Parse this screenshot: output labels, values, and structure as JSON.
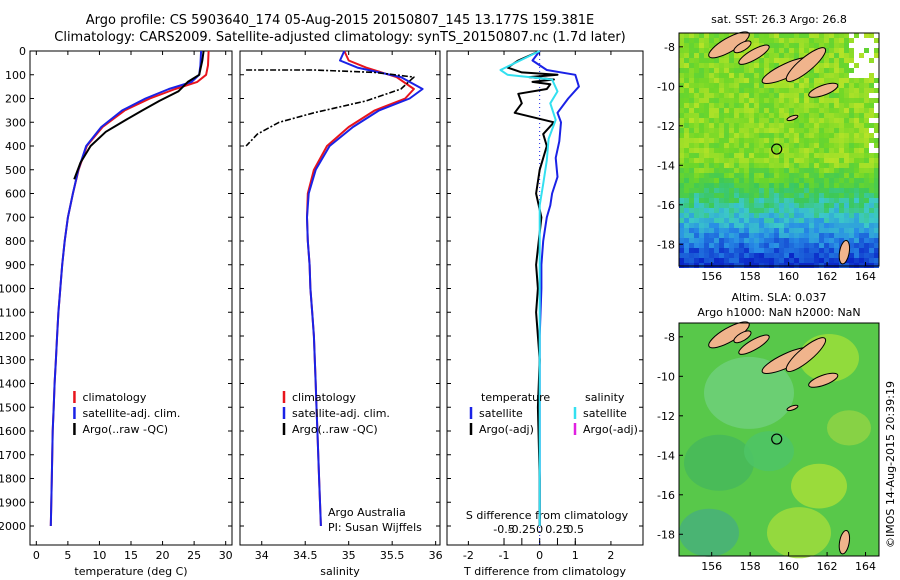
{
  "titles": {
    "line1": "Argo profile: CS 5903640_174 05-Aug-2015 20150807_145 13.177S 159.381E",
    "line2": "Climatology: CARS2009. Satellite-adjusted climatology: synTS_20150807.nc (1.7d later)"
  },
  "colors": {
    "climatology": "#e8141c",
    "satellite": "#1a22e6",
    "argo": "#000000",
    "sat_salinity": "#33e0f0",
    "argo_adj_salinity": "#e020e0"
  },
  "depth_axis": {
    "ylim": [
      0,
      2080
    ],
    "ticks": [
      0,
      100,
      200,
      300,
      400,
      500,
      600,
      700,
      800,
      900,
      1000,
      1100,
      1200,
      1300,
      1400,
      1500,
      1600,
      1700,
      1800,
      1900,
      2000
    ]
  },
  "chart_data": [
    {
      "type": "line",
      "id": "temperature",
      "xlabel": "temperature (deg C)",
      "xlim": [
        -1,
        31
      ],
      "xticks": [
        0,
        5,
        10,
        15,
        20,
        25,
        30
      ],
      "ylim": [
        0,
        2080
      ],
      "legend": {
        "position": "bottom-center",
        "entries": [
          "climatology",
          "satellite-adj. clim.",
          "Argo(..raw -QC)"
        ]
      },
      "series": [
        {
          "name": "climatology",
          "color": "#e8141c",
          "x": [
            27.3,
            27.2,
            26.9,
            25.5,
            22.0,
            18.0,
            14.0,
            10.5,
            8.0,
            6.7,
            5.8,
            5.0,
            4.5,
            4.1,
            3.8,
            3.5,
            3.3,
            3.1,
            2.9,
            2.75,
            2.6,
            2.45,
            2.3
          ],
          "y": [
            0,
            60,
            100,
            130,
            160,
            200,
            250,
            320,
            400,
            500,
            600,
            700,
            800,
            900,
            1000,
            1100,
            1200,
            1300,
            1400,
            1500,
            1600,
            1800,
            2000
          ]
        },
        {
          "name": "satellite-adj. clim.",
          "color": "#1a22e6",
          "x": [
            26.1,
            26.0,
            25.8,
            24.6,
            21.0,
            17.3,
            13.6,
            10.3,
            7.9,
            6.65,
            5.8,
            5.0,
            4.5,
            4.1,
            3.8,
            3.5,
            3.3,
            3.1,
            2.9,
            2.75,
            2.6,
            2.45,
            2.3
          ],
          "y": [
            0,
            60,
            100,
            130,
            160,
            200,
            250,
            320,
            400,
            500,
            600,
            700,
            800,
            900,
            1000,
            1100,
            1200,
            1300,
            1400,
            1500,
            1600,
            1800,
            2000
          ]
        },
        {
          "name": "Argo(..raw -QC)",
          "color": "#000000",
          "x": [
            26.5,
            26.3,
            25.8,
            24.0,
            22.5,
            19.5,
            16.8,
            14.2,
            11.0,
            8.6,
            7.0,
            6.0
          ],
          "y": [
            0,
            40,
            100,
            130,
            170,
            210,
            250,
            290,
            340,
            400,
            470,
            540
          ]
        }
      ]
    },
    {
      "type": "line",
      "id": "salinity",
      "xlabel": "salinity",
      "xlim": [
        33.75,
        36.05
      ],
      "xticks": [
        34,
        34.5,
        35,
        35.5,
        36
      ],
      "xtick_labels": [
        "34",
        "34.5",
        "35",
        "35.5",
        "36"
      ],
      "ylim": [
        0,
        2080
      ],
      "legend": {
        "position": "bottom-center",
        "entries": [
          "climatology",
          "satellite-adj. clim.",
          "Argo(..raw -QC)"
        ]
      },
      "annotation": [
        "Argo Australia",
        "PI: Susan Wijffels"
      ],
      "series": [
        {
          "name": "climatology",
          "color": "#e8141c",
          "x": [
            34.95,
            35.0,
            35.2,
            35.55,
            35.75,
            35.65,
            35.3,
            35.0,
            34.75,
            34.6,
            34.53,
            34.52,
            34.53,
            34.55,
            34.56,
            34.58,
            34.6,
            34.61,
            34.62,
            34.63,
            34.64,
            34.66,
            34.68
          ],
          "y": [
            0,
            40,
            70,
            110,
            160,
            200,
            250,
            320,
            400,
            500,
            600,
            700,
            800,
            900,
            1000,
            1100,
            1200,
            1300,
            1400,
            1500,
            1600,
            1800,
            2000
          ]
        },
        {
          "name": "satellite-adj. clim.",
          "color": "#1a22e6",
          "x": [
            34.95,
            34.9,
            35.1,
            35.6,
            35.85,
            35.7,
            35.35,
            35.05,
            34.78,
            34.62,
            34.54,
            34.52,
            34.53,
            34.55,
            34.56,
            34.58,
            34.6,
            34.61,
            34.62,
            34.63,
            34.64,
            34.66,
            34.68
          ],
          "y": [
            0,
            40,
            70,
            110,
            160,
            200,
            250,
            320,
            400,
            500,
            600,
            700,
            800,
            900,
            1000,
            1100,
            1200,
            1300,
            1400,
            1500,
            1600,
            1800,
            2000
          ]
        },
        {
          "name": "Argo(..raw -QC)",
          "color": "#000000",
          "dash": true,
          "x": [
            33.82,
            34.6,
            35.3,
            35.75,
            35.6,
            35.2,
            34.6,
            34.2,
            33.95,
            33.82
          ],
          "y": [
            80,
            80,
            90,
            110,
            160,
            210,
            260,
            300,
            350,
            400
          ]
        }
      ]
    },
    {
      "type": "line",
      "id": "difference",
      "xlabel": "T difference from climatology",
      "xlabel_top": "S difference from climatology",
      "xlim": [
        -2.6,
        2.9
      ],
      "xticks": [
        -2,
        -1,
        0,
        1,
        2
      ],
      "xtick_labels": [
        "-2",
        "-1",
        "0",
        "1",
        "2"
      ],
      "xticks_top_values": [
        -0.5,
        -0.25,
        0,
        0.25,
        0.5
      ],
      "xticks_top_labels": [
        "-0.5",
        "-0.25",
        "0",
        "0.25",
        "0.5"
      ],
      "ylim": [
        0,
        2080
      ],
      "legend": {
        "position": "bottom-center",
        "groups": [
          "temperature",
          "salinity"
        ],
        "entries": [
          "satellite",
          "Argo(-adj)",
          "satellite",
          "Argo(-adj)"
        ]
      },
      "series": [
        {
          "name": "satellite",
          "color": "#1a22e6",
          "x": [
            0,
            -0.2,
            0.2,
            1.0,
            1.1,
            0.8,
            0.5,
            0.6,
            0.55,
            0.45,
            0.5,
            0.35,
            0.3,
            0.2,
            0.1,
            0.05,
            0.05,
            0.0,
            0.0,
            0.0,
            0.0
          ],
          "y": [
            0,
            40,
            80,
            100,
            150,
            200,
            260,
            300,
            380,
            450,
            530,
            600,
            650,
            700,
            800,
            900,
            1000,
            1200,
            1500,
            1800,
            2000
          ]
        },
        {
          "name": "Argo(-adj)",
          "color": "#000000",
          "x": [
            0,
            -0.6,
            -0.9,
            -0.5,
            0.5,
            -0.3,
            0.4,
            -0.2,
            0.3,
            0.2,
            -0.6,
            -0.5,
            -0.7,
            0.4,
            0.1,
            0.2,
            0.0,
            -0.1,
            0.05,
            -0.1,
            -0.05,
            -0.1,
            0.0,
            -0.05,
            0.0,
            0.0
          ],
          "y": [
            0,
            40,
            70,
            90,
            100,
            110,
            120,
            130,
            140,
            160,
            180,
            220,
            260,
            300,
            350,
            400,
            500,
            600,
            700,
            900,
            1000,
            1100,
            1300,
            1500,
            1800,
            2000
          ]
        },
        {
          "name": "satellite",
          "color": "#33e0f0",
          "x": [
            0,
            -1.1,
            -0.9,
            0.35,
            0.5,
            0.3,
            0.45,
            0.25,
            0.2,
            0.1,
            0.0,
            0.0,
            0.0
          ],
          "y": [
            0,
            80,
            100,
            120,
            170,
            220,
            290,
            370,
            460,
            560,
            650,
            750,
            2000
          ]
        },
        {
          "name": "Argo(-adj)",
          "color": "#e020e0",
          "x": [],
          "y": []
        }
      ]
    }
  ],
  "maps": [
    {
      "id": "sst",
      "title": "sat. SST: 26.3  Argo: 26.8",
      "lon_ticks": [
        "156",
        "158",
        "160",
        "162",
        "164"
      ],
      "lat_ticks": [
        "-8",
        "-10",
        "-12",
        "-14",
        "-16",
        "-18"
      ],
      "lon_range": [
        154.3,
        164.7
      ],
      "lat_range": [
        -19.1,
        -7.3
      ],
      "marker": {
        "lon": 159.381,
        "lat": -13.177
      }
    },
    {
      "id": "sla",
      "title_line1": "Altim. SLA: 0.037",
      "title_line2": "Argo h1000: NaN h2000: NaN",
      "lon_ticks": [
        "156",
        "158",
        "160",
        "162",
        "164"
      ],
      "lat_ticks": [
        "-8",
        "-10",
        "-12",
        "-14",
        "-16",
        "-18"
      ],
      "lon_range": [
        154.3,
        164.7
      ],
      "lat_range": [
        -19.1,
        -7.3
      ],
      "marker": {
        "lon": 159.381,
        "lat": -13.177
      }
    }
  ],
  "footer": "©IMOS 14-Aug-2015 20:39:19"
}
